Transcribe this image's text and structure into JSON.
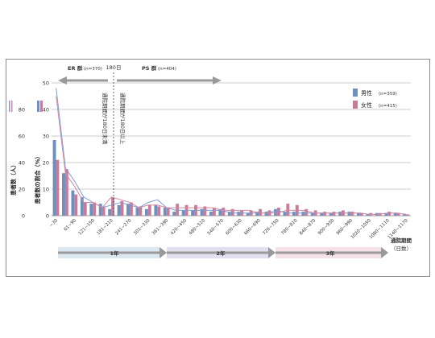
{
  "chart_data": {
    "type": "bar",
    "ylabel_outer": "患者数（人）",
    "ylabel_inner": "患者数の割合（%）",
    "y_ticks_outer": [
      0,
      20,
      40,
      60,
      80
    ],
    "y_ticks_inner": [
      0,
      10,
      20,
      30,
      40,
      50
    ],
    "ylim_outer": [
      0,
      100
    ],
    "ylim_inner": [
      0,
      50
    ],
    "xlabel": "通院期間",
    "xlabel_unit": "（日数）",
    "categories": [
      "~30",
      "31~60",
      "61~90",
      "91~120",
      "121~150",
      "151~180",
      "181~210",
      "211~240",
      "241~270",
      "271~300",
      "301~330",
      "331~360",
      "361~390",
      "391~420",
      "421~450",
      "451~480",
      "481~510",
      "511~540",
      "541~570",
      "571~600",
      "601~630",
      "631~660",
      "661~690",
      "691~720",
      "721~750",
      "751~780",
      "781~810",
      "811~840",
      "841~870",
      "871~900",
      "901~930",
      "931~960",
      "961~990",
      "991~1020",
      "1021~1050",
      "1051~1080",
      "1081~1110",
      "1111~1140",
      "1141~1170"
    ],
    "x_tick_labels": [
      "~30",
      "61~90",
      "121~150",
      "181~210",
      "241~270",
      "301~330",
      "361~390",
      "420~450",
      "480~510",
      "540~570",
      "600~630",
      "660~690",
      "720~750",
      "780~810",
      "840~870",
      "900~930",
      "960~990",
      "1020~1050",
      "1080~1110",
      "1140~1170"
    ],
    "series": [
      {
        "name": "男性",
        "n": "(n=359)",
        "color": "#6f8fbf",
        "values": [
          57,
          32,
          19,
          14,
          9,
          9,
          5,
          8,
          9,
          6,
          5,
          8,
          6,
          3,
          4,
          4,
          5,
          3,
          5,
          3,
          3,
          2,
          3,
          3,
          5,
          3,
          3,
          3,
          2,
          2,
          2,
          3,
          3,
          2,
          1,
          2,
          2,
          2,
          1
        ]
      },
      {
        "name": "女性",
        "n": "(n=415)",
        "color": "#c87c9a",
        "values": [
          42,
          35,
          16,
          10,
          10,
          7,
          14,
          11,
          10,
          7,
          8,
          7,
          6,
          9,
          8,
          8,
          7,
          6,
          6,
          5,
          4,
          4,
          5,
          4,
          6,
          9,
          8,
          5,
          4,
          3,
          3,
          4,
          3,
          2,
          2,
          2,
          3,
          2,
          1
        ]
      }
    ],
    "line_series": [
      {
        "name": "男性",
        "color": "#7e9cd0",
        "values": [
          48,
          18,
          13,
          7,
          5,
          3,
          4,
          5,
          4,
          3,
          5,
          6,
          3,
          2,
          2,
          2,
          2,
          2,
          2,
          1,
          1,
          1,
          1,
          1,
          2,
          1,
          1,
          1,
          1,
          1,
          1,
          1,
          1,
          1,
          0.5,
          0.5,
          1,
          1,
          0.5
        ]
      },
      {
        "name": "女性",
        "color": "#cf8aa5",
        "values": [
          45,
          16,
          11,
          5,
          5,
          3,
          7,
          6,
          5,
          3,
          4,
          4,
          3,
          3,
          3,
          3,
          3,
          3,
          2,
          2,
          2,
          2,
          1,
          1,
          1,
          2,
          2,
          2,
          1,
          1,
          1,
          1,
          1,
          1,
          0.5,
          0.5,
          1,
          1,
          0.5
        ]
      }
    ],
    "annotations": {
      "er_group": "ER 群",
      "er_n": "(n=370)",
      "ps_group": "PS 群",
      "ps_n": "(n=404)",
      "day180": "180日",
      "under180": "通院期間が180日未満",
      "over180": "通院期間が180日以上"
    },
    "periods": [
      {
        "label": "1年",
        "color": "#dce8f1"
      },
      {
        "label": "2年",
        "color": "#e4dff0"
      },
      {
        "label": "3年",
        "color": "#f6e1e8"
      }
    ],
    "legend_position": "right"
  }
}
